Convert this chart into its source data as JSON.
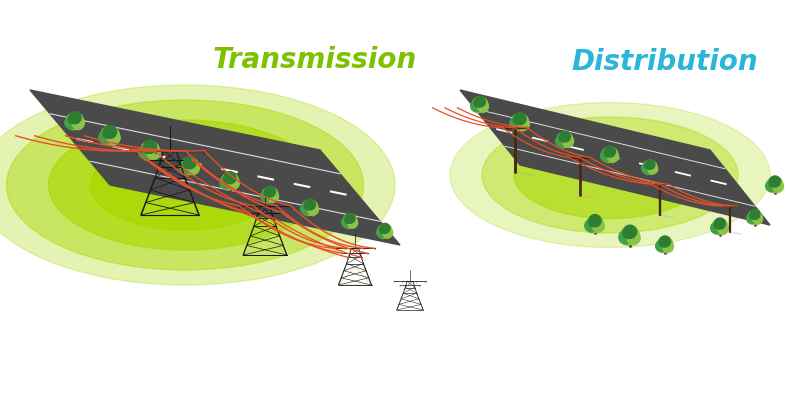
{
  "bg_color": "#ffffff",
  "transmission_label": "Transmission",
  "distribution_label": "Distribution",
  "transmission_label_color": "#7dc200",
  "distribution_label_color": "#29b6d8",
  "label_fontsize": 20,
  "wire_color": "#e8502a",
  "pole_color": "#4a2810",
  "tower_color": "#1a1a1a",
  "road_color": "#4a4a4a",
  "road_stripe_color": "#dddddd",
  "grass_color_bright": "#a8d800",
  "grass_color_light": "#c8e840",
  "tree_dark": "#2e7d32",
  "tree_mid": "#43a047",
  "tree_light": "#8bc34a",
  "tree_bright": "#aed65a",
  "tree_trunk": "#5d4037",
  "shadow_color": "#b8cc80"
}
